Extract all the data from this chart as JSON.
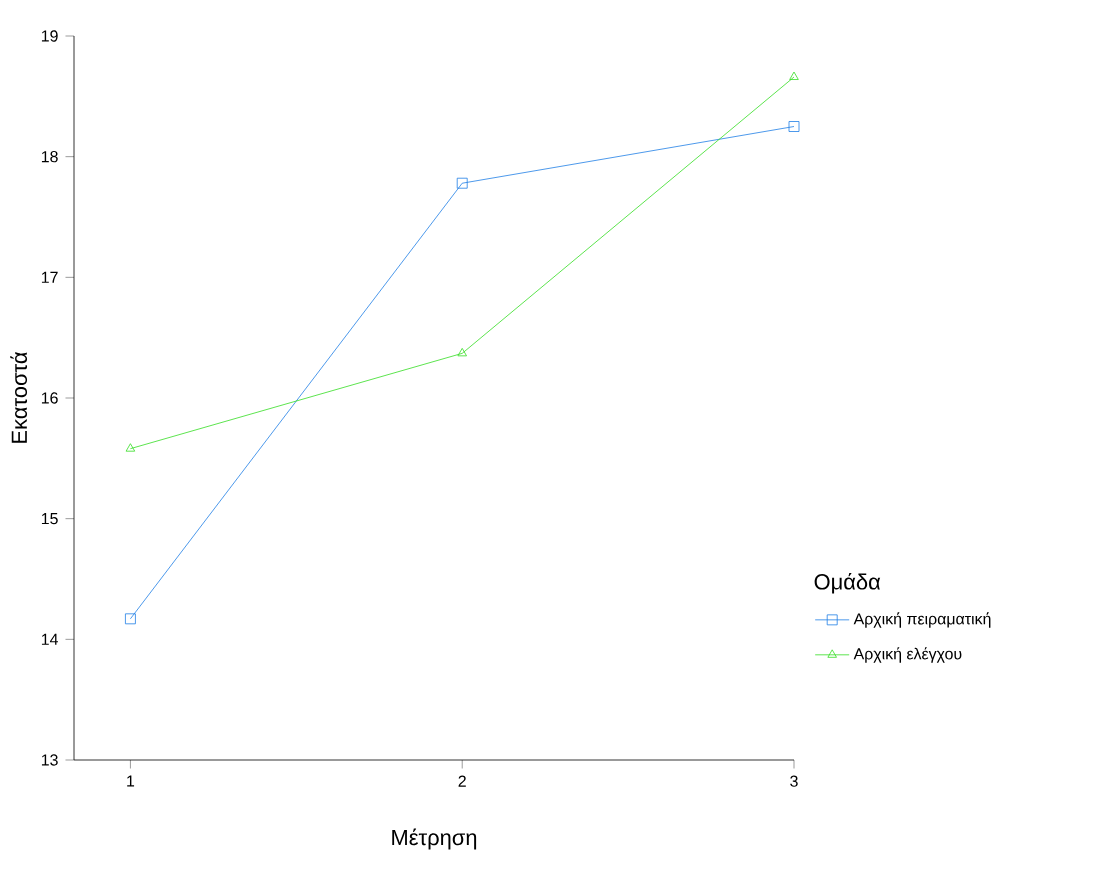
{
  "chart_data": {
    "type": "line",
    "xlabel": "Μέτρηση",
    "ylabel": "Εκατοστά",
    "legend_title": "Ομάδα",
    "x": [
      1,
      2,
      3
    ],
    "series": [
      {
        "name": "Αρχική πειραματική",
        "color": "#1f7fe6",
        "marker": "square",
        "values": [
          14.17,
          17.78,
          18.25
        ]
      },
      {
        "name": "Αρχική ελέγχου",
        "color": "#33dd22",
        "marker": "triangle",
        "values": [
          15.58,
          16.37,
          18.66
        ]
      }
    ],
    "xlim": [
      0.83,
      3
    ],
    "ylim": [
      13,
      19
    ],
    "xticks": [
      1,
      2,
      3
    ],
    "yticks": [
      13,
      14,
      15,
      16,
      17,
      18,
      19
    ],
    "legend": "right",
    "grid": false
  }
}
